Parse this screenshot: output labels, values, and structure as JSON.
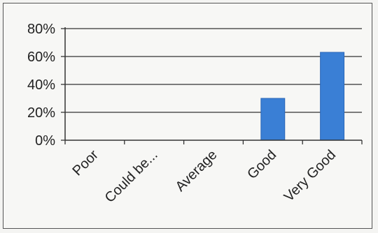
{
  "chart_data": {
    "type": "bar",
    "title": "",
    "xlabel": "",
    "ylabel": "",
    "categories": [
      "Poor",
      "Could be...",
      "Average",
      "Good",
      "Very Good"
    ],
    "values": [
      0,
      0,
      0,
      30,
      63
    ],
    "ylim": [
      0,
      80
    ],
    "yticks": [
      0,
      20,
      40,
      60,
      80
    ],
    "ytick_labels": [
      "0%",
      "20%",
      "40%",
      "60%",
      "80%"
    ],
    "grid": true,
    "legend": "none",
    "bar_color": "#3a7fd5",
    "bar_edge_color": "#2a66b8"
  }
}
